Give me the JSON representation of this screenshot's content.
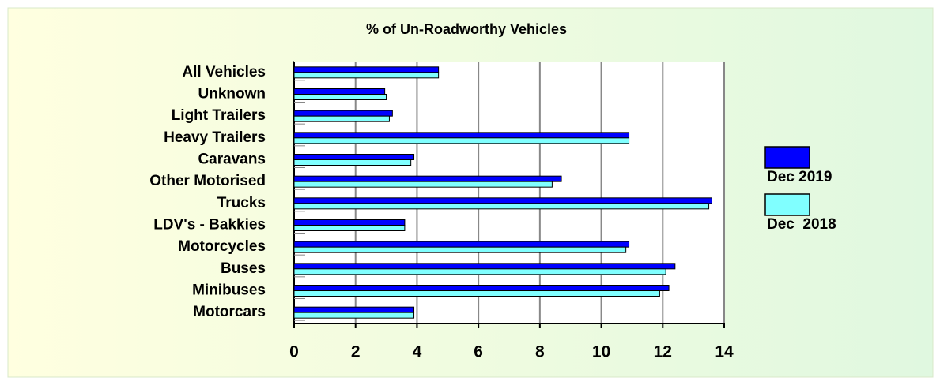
{
  "chart_data": {
    "type": "barh",
    "title": "% of Un-Roadworthy Vehicles",
    "categories": [
      "All Vehicles",
      "Unknown",
      "Light Trailers",
      "Heavy Trailers",
      "Caravans",
      "Other Motorised",
      "Trucks",
      "LDV's - Bakkies",
      "Motorcycles",
      "Buses",
      "Minibuses",
      "Motorcars"
    ],
    "series": [
      {
        "name": "Dec 2019",
        "color": "#0000ff",
        "values": [
          4.7,
          2.95,
          3.2,
          10.9,
          3.9,
          8.7,
          13.6,
          3.6,
          10.9,
          12.4,
          12.2,
          3.9
        ]
      },
      {
        "name": "Dec  2018",
        "color": "#80ffff",
        "values": [
          4.7,
          3.0,
          3.1,
          10.9,
          3.8,
          8.4,
          13.5,
          3.6,
          10.8,
          12.1,
          11.9,
          3.9
        ]
      }
    ],
    "xlim": [
      0,
      14
    ],
    "xticks": [
      0,
      2,
      4,
      6,
      8,
      10,
      12,
      14
    ],
    "grid": true,
    "legend": "right"
  }
}
